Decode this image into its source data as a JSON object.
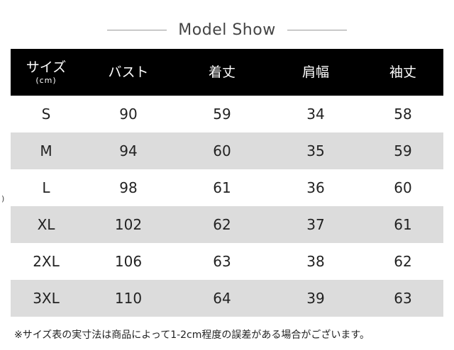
{
  "title": "Model Show",
  "table": {
    "headers": [
      {
        "main": "サイズ",
        "sub": "(cm)"
      },
      {
        "main": "バスト",
        "sub": ""
      },
      {
        "main": "着丈",
        "sub": ""
      },
      {
        "main": "肩幅",
        "sub": ""
      },
      {
        "main": "袖丈",
        "sub": ""
      }
    ],
    "rows": [
      [
        "S",
        "90",
        "59",
        "34",
        "58"
      ],
      [
        "M",
        "94",
        "60",
        "35",
        "59"
      ],
      [
        "L",
        "98",
        "61",
        "36",
        "60"
      ],
      [
        "XL",
        "102",
        "62",
        "37",
        "61"
      ],
      [
        "2XL",
        "106",
        "63",
        "38",
        "62"
      ],
      [
        "3XL",
        "110",
        "64",
        "39",
        "63"
      ]
    ]
  },
  "note": "※サイズ表の実寸法は商品によって1-2cm程度の誤差がある場合がございます。",
  "edge_mark": ")"
}
